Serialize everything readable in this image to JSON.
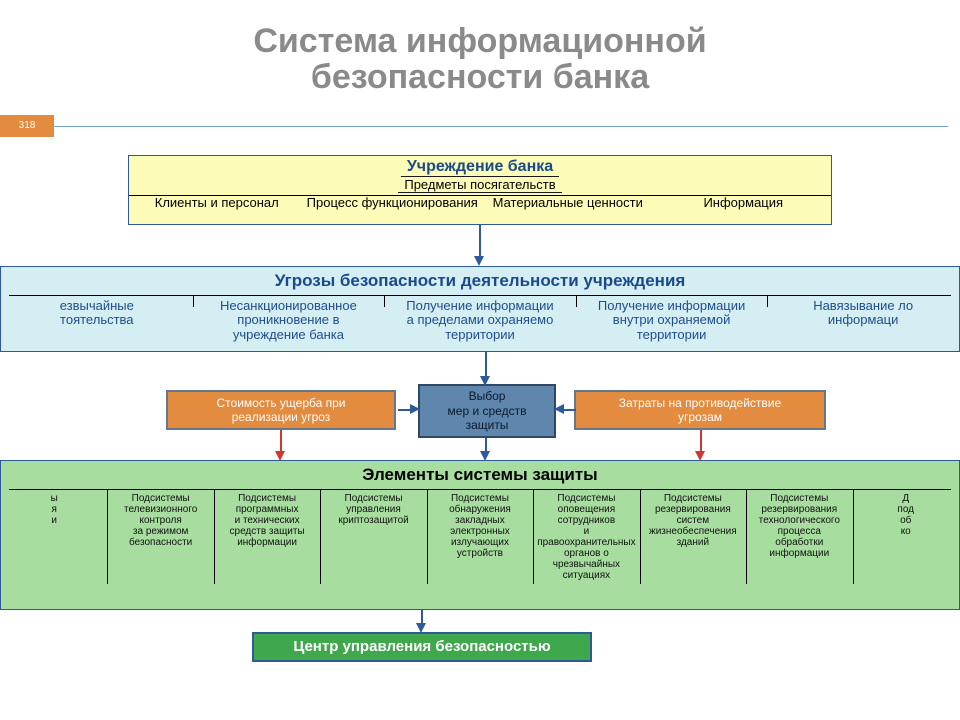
{
  "title": {
    "line1": "Система информационной",
    "line2": "безопасности банка",
    "color": "#8a8a8a",
    "fontsize": 34
  },
  "page_badge": {
    "value": "318",
    "bg": "#e38b3f",
    "fg": "#ffffff"
  },
  "rule": {
    "color": "#6fa3d1"
  },
  "colors": {
    "arrow": "#2f5a9a",
    "arrow_red": "#cc3a2f"
  },
  "top_box": {
    "bg": "#fcfcb8",
    "border": "#2f5a9a",
    "title": "Учреждение банка",
    "subtitle": "Предметы посягательств",
    "title_color": "#1a4a8a",
    "title_fontsize": 16,
    "cols": [
      "Клиенты и персонал",
      "Процесс функционирования",
      "Материальные ценности",
      "Информация"
    ],
    "col_fontsize": 13
  },
  "threats_box": {
    "bg": "#d4eef4",
    "border": "#2f5a9a",
    "title": "Угрозы безопасности деятельности учреждения",
    "title_color": "#1a4a8a",
    "title_fontsize": 17,
    "cols": [
      "езвычайные\nтоятельства",
      "Несанкционированное\nпроникновение в\nучреждение банка",
      "Получение информации\nа пределами охраняемо\nтерритории",
      "Получение информации\nвнутри охраняемой\nтерритории",
      "Навязывание ло\nинформаци"
    ],
    "col_color": "#1f4d8c",
    "col_fontsize": 13
  },
  "mid": {
    "left": {
      "text": "Стоимость ущерба при\nреализации угроз",
      "bg": "#e38b3f",
      "fg": "#ffffff",
      "border": "#63788f"
    },
    "center": {
      "text": "Выбор\nмер и средств\nзащиты",
      "bg": "#5f86ad",
      "fg": "#0a1a2a",
      "border": "#2f4866"
    },
    "right": {
      "text": "Затраты на противодействие\nугрозам",
      "bg": "#e38b3f",
      "fg": "#ffffff",
      "border": "#63788f"
    }
  },
  "elements_box": {
    "bg": "#a7dd9f",
    "border": "#2f5a9a",
    "title": "Элементы системы защиты",
    "title_fontsize": 17,
    "cols": [
      "ы\nя\nи\n",
      "Подсистемы\nтелевизионного\nконтроля\nза режимом\nбезопасности",
      "Подсистемы\nпрограммных\nи технических\nсредств защиты\nинформации",
      "Подсистемы\nуправления\nкриптозащитой",
      "Подсистемы\nобнаружения\nзакладных\nэлектронных\nизлучающих\nустройств",
      "Подсистемы\nоповещения\nсотрудников\nи\nправоохранительных\nорганов о\nчрезвычайных\nситуациях",
      "Подсистемы\nрезервирования\nсистем\nжизнеобеспечения\nзданий",
      "Подсистемы\nрезервирования\nтехнологического\nпроцесса\nобработки\nинформации",
      "Д\nпод\nоб\nко\n"
    ],
    "col_fontsize": 10
  },
  "bottom_box": {
    "text": "Центр управления безопасностью",
    "bg": "#3fa84c",
    "fg": "#ffffff",
    "border": "#2f5a9a",
    "fontsize": 15
  }
}
